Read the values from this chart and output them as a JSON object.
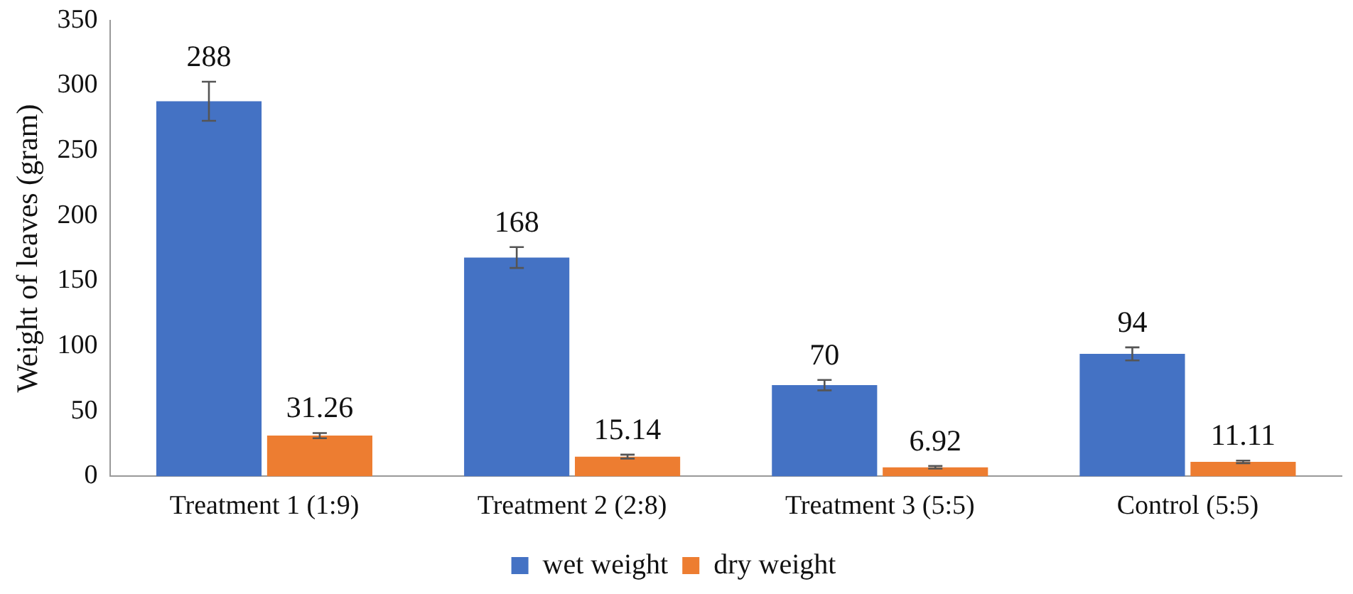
{
  "chart_data": {
    "type": "bar",
    "ylabel": "Weight of leaves (gram)",
    "categories": [
      "Treatment 1 (1:9)",
      "Treatment 2 (2:8)",
      "Treatment 3 (5:5)",
      "Control (5:5)"
    ],
    "series": [
      {
        "name": "wet weight",
        "color": "#4472c4",
        "values": [
          288,
          168,
          70,
          94
        ],
        "errors": [
          15,
          8,
          4,
          5
        ]
      },
      {
        "name": "dry weight",
        "color": "#ed7d31",
        "values": [
          31.26,
          15.14,
          6.92,
          11.11
        ],
        "errors": [
          2,
          1.5,
          1,
          1
        ]
      }
    ],
    "ylim": [
      0,
      350
    ],
    "yticks": [
      0,
      50,
      100,
      150,
      200,
      250,
      300,
      350
    ],
    "grid": false,
    "legend": "bottom",
    "data_labels": true
  }
}
